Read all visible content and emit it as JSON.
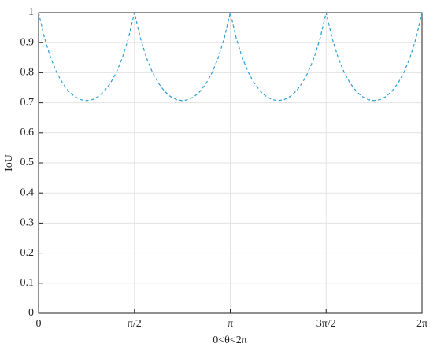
{
  "chart_data": {
    "type": "line",
    "x_label": "0<θ<2π",
    "y_label": "IoU",
    "x": [
      0,
      0.0982,
      0.1963,
      0.2945,
      0.3927,
      0.4909,
      0.589,
      0.6872,
      0.7854,
      0.8836,
      0.9817,
      1.0799,
      1.1781,
      1.2763,
      1.3744,
      1.4726,
      1.5708,
      1.669,
      1.7671,
      1.8653,
      1.9635,
      2.0617,
      2.1598,
      2.258,
      2.3562,
      2.4544,
      2.5525,
      2.6507,
      2.7489,
      2.8471,
      2.9452,
      3.0434,
      3.1416,
      3.2398,
      3.3379,
      3.4361,
      3.5343,
      3.6325,
      3.7306,
      3.8288,
      3.927,
      4.0252,
      4.1233,
      4.2215,
      4.3197,
      4.4179,
      4.516,
      4.6142,
      4.7124,
      4.8106,
      4.9087,
      5.0069,
      5.1051,
      5.2033,
      5.3014,
      5.3996,
      5.4978,
      5.596,
      5.6941,
      5.7923,
      5.8905,
      5.9887,
      6.0868,
      6.185,
      6.2832
    ],
    "series": [
      {
        "color": "#2a9fd6",
        "values": [
          1,
          0.9148,
          0.8504,
          0.8018,
          0.7654,
          0.7389,
          0.721,
          0.7105,
          0.7071,
          0.7105,
          0.721,
          0.7389,
          0.7654,
          0.8018,
          0.8504,
          0.9148,
          1,
          0.9148,
          0.8504,
          0.8018,
          0.7654,
          0.7389,
          0.721,
          0.7105,
          0.7071,
          0.7105,
          0.721,
          0.7389,
          0.7654,
          0.8018,
          0.8504,
          0.9148,
          1,
          0.9148,
          0.8504,
          0.8018,
          0.7654,
          0.7389,
          0.721,
          0.7105,
          0.7071,
          0.7105,
          0.721,
          0.7389,
          0.7654,
          0.8018,
          0.8504,
          0.9148,
          1,
          0.9148,
          0.8504,
          0.8018,
          0.7654,
          0.7389,
          0.721,
          0.7105,
          0.7071,
          0.7105,
          0.721,
          0.7389,
          0.7654,
          0.8018,
          0.8504,
          0.9148,
          1
        ]
      }
    ],
    "xlim": [
      0,
      6.2832
    ],
    "ylim": [
      0,
      1
    ],
    "xticks": [
      0,
      {
        "value": 1.5708,
        "label": "π/2"
      },
      {
        "value": 3.1416,
        "label": "π"
      },
      {
        "value": 4.7124,
        "label": "3π/2"
      },
      {
        "value": 6.2832,
        "label": "2π"
      }
    ],
    "yticks": [
      0,
      0.1,
      0.2,
      0.3,
      0.4,
      0.5,
      0.6,
      0.7,
      0.8,
      0.9,
      1
    ],
    "grid": true
  }
}
